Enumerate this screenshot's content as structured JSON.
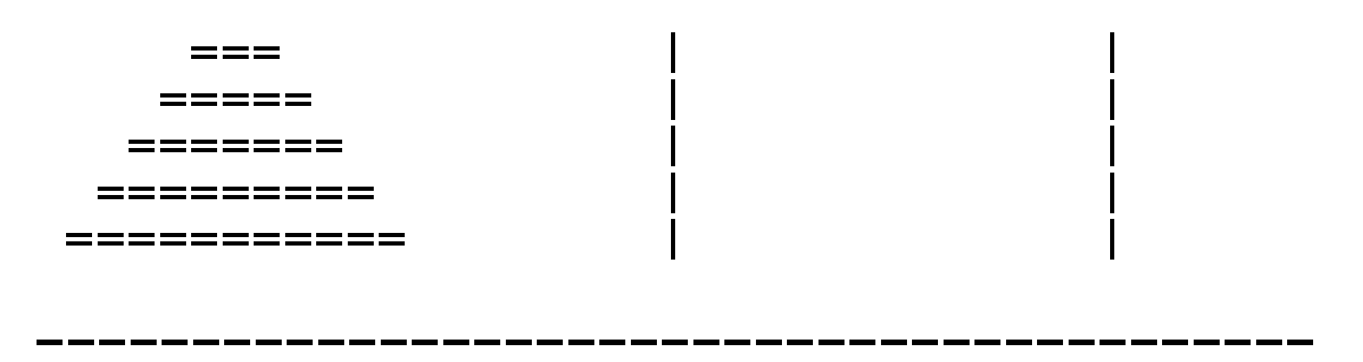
{
  "game": {
    "title": "",
    "towers": [
      {
        "name": "",
        "disks": [
          3,
          5,
          7,
          9,
          11
        ]
      },
      {
        "name": "",
        "disks": []
      },
      {
        "name": "",
        "disks": []
      }
    ],
    "max_levels": 5,
    "base_symbol": "-",
    "disk_symbol": "=",
    "peg_symbol": "|",
    "colors": {
      "ink": "#000000",
      "background": "#ffffff"
    }
  }
}
